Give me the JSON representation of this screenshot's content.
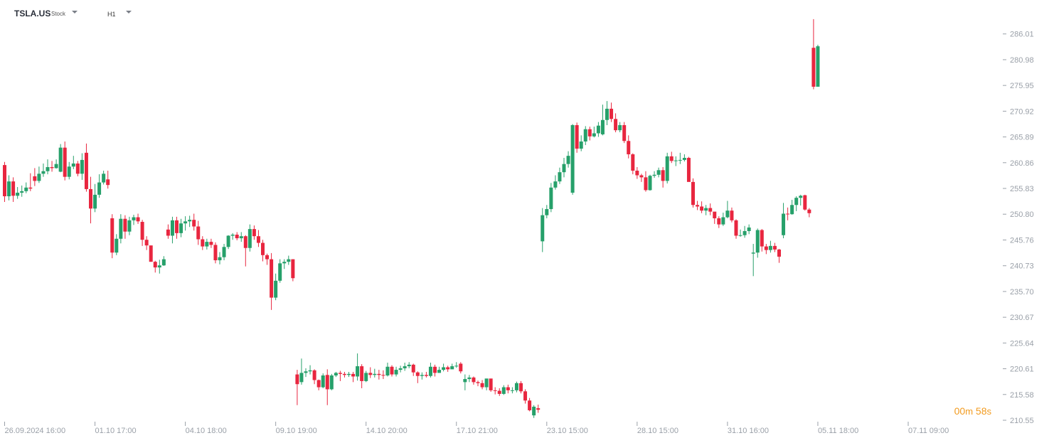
{
  "toolbar": {
    "symbol": "TSLA.US",
    "type": "Stock",
    "timeframe": "H1",
    "icons": [
      "symbol-dropdown-icon",
      "timeframe-dropdown-icon"
    ]
  },
  "timer": {
    "minutes": "00",
    "m": "m",
    "seconds": "58",
    "s": "s"
  },
  "colors": {
    "up": "#26a06a",
    "down": "#e8263f",
    "axis": "#9aa0a8",
    "timer": "#f29b1f"
  },
  "chart_data": {
    "type": "candlestick",
    "ylim": [
      210.55,
      290.0
    ],
    "yticks": [
      "286.01",
      "280.98",
      "275.95",
      "270.92",
      "265.89",
      "260.86",
      "255.83",
      "250.80",
      "245.76",
      "240.73",
      "235.70",
      "230.67",
      "225.64",
      "220.61",
      "215.58",
      "210.55"
    ],
    "xticks": [
      {
        "label": "26.09.2024 16:00",
        "index": 0
      },
      {
        "label": "01.10 17:00",
        "index": 21
      },
      {
        "label": "04.10 18:00",
        "index": 42
      },
      {
        "label": "09.10 19:00",
        "index": 63
      },
      {
        "label": "14.10 20:00",
        "index": 84
      },
      {
        "label": "17.10 21:00",
        "index": 105
      },
      {
        "label": "23.10 15:00",
        "index": 126
      },
      {
        "label": "28.10 15:00",
        "index": 147
      },
      {
        "label": "31.10 16:00",
        "index": 168
      },
      {
        "label": "05.11 18:00",
        "index": 189
      },
      {
        "label": "07.11 09:00",
        "index": 210
      }
    ],
    "candles": [
      [
        260.4,
        254.3,
        261.0,
        253.2
      ],
      [
        254.3,
        257.2,
        258.4,
        253.5
      ],
      [
        257.2,
        254.4,
        258.0,
        253.2
      ],
      [
        254.4,
        255.0,
        256.1,
        253.8
      ],
      [
        255.0,
        255.3,
        256.4,
        254.2
      ],
      [
        255.3,
        256.0,
        257.0,
        254.9
      ],
      [
        256.0,
        255.8,
        258.8,
        255.3
      ],
      [
        258.2,
        257.3,
        259.8,
        256.3
      ],
      [
        257.3,
        258.7,
        260.1,
        256.9
      ],
      [
        258.7,
        259.2,
        260.7,
        258.1
      ],
      [
        259.2,
        260.0,
        261.5,
        258.6
      ],
      [
        260.0,
        259.8,
        261.2,
        259.1
      ],
      [
        259.8,
        260.6,
        261.5,
        259.7
      ],
      [
        259.1,
        263.8,
        264.5,
        259.0
      ],
      [
        263.8,
        258.1,
        265.0,
        257.4
      ],
      [
        258.1,
        260.1,
        261.0,
        257.6
      ],
      [
        260.1,
        260.7,
        262.2,
        259.6
      ],
      [
        260.7,
        258.7,
        261.2,
        258.2
      ],
      [
        258.7,
        261.4,
        262.7,
        257.5
      ],
      [
        262.8,
        255.7,
        264.6,
        255.2
      ],
      [
        255.7,
        251.9,
        258.1,
        249.0
      ],
      [
        251.9,
        254.6,
        256.7,
        251.2
      ],
      [
        254.6,
        257.0,
        258.6,
        254.0
      ],
      [
        257.0,
        258.7,
        259.3,
        256.6
      ],
      [
        257.6,
        256.5,
        259.3,
        255.8
      ],
      [
        250.0,
        243.3,
        250.8,
        242.2
      ],
      [
        243.3,
        246.0,
        246.9,
        242.8
      ],
      [
        246.0,
        249.9,
        250.8,
        245.1
      ],
      [
        249.9,
        247.4,
        250.6,
        246.0
      ],
      [
        247.4,
        249.6,
        250.3,
        246.7
      ],
      [
        249.6,
        250.2,
        250.7,
        248.7
      ],
      [
        250.2,
        249.4,
        250.9,
        248.9
      ],
      [
        249.3,
        245.8,
        249.7,
        244.6
      ],
      [
        245.8,
        244.7,
        246.5,
        243.8
      ],
      [
        244.7,
        241.5,
        244.6,
        241.6
      ],
      [
        241.5,
        240.4,
        241.7,
        239.4
      ],
      [
        240.4,
        240.8,
        241.9,
        239.2
      ],
      [
        240.8,
        242.0,
        242.6,
        240.7
      ],
      [
        247.8,
        246.6,
        248.8,
        246.0
      ],
      [
        246.6,
        249.6,
        250.3,
        245.1
      ],
      [
        249.6,
        247.1,
        250.3,
        246.0
      ],
      [
        247.1,
        249.0,
        249.9,
        246.3
      ],
      [
        249.0,
        249.4,
        250.4,
        247.6
      ],
      [
        249.4,
        249.7,
        250.5,
        248.3
      ],
      [
        249.7,
        248.4,
        250.9,
        247.6
      ],
      [
        248.4,
        245.9,
        249.5,
        244.8
      ],
      [
        245.9,
        244.5,
        246.5,
        243.8
      ],
      [
        244.5,
        245.4,
        246.0,
        243.9
      ],
      [
        245.4,
        244.8,
        246.0,
        244.2
      ],
      [
        244.8,
        241.8,
        245.3,
        241.2
      ],
      [
        241.8,
        242.4,
        243.4,
        241.0
      ],
      [
        242.4,
        244.4,
        245.0,
        241.8
      ],
      [
        244.4,
        246.6,
        246.7,
        244.0
      ],
      [
        246.6,
        246.8,
        247.1,
        245.8
      ],
      [
        246.8,
        246.1,
        247.3,
        245.7
      ],
      [
        246.1,
        246.5,
        247.3,
        245.4
      ],
      [
        246.5,
        244.2,
        246.7,
        240.6
      ],
      [
        244.2,
        247.9,
        248.8,
        243.5
      ],
      [
        247.9,
        246.5,
        248.6,
        245.8
      ],
      [
        246.5,
        245.2,
        247.7,
        244.4
      ],
      [
        245.2,
        242.8,
        245.8,
        241.6
      ],
      [
        242.8,
        242.0,
        243.1,
        240.9
      ],
      [
        242.0,
        234.5,
        243.2,
        232.1
      ],
      [
        234.5,
        237.8,
        239.2,
        234.0
      ],
      [
        237.8,
        241.2,
        242.0,
        237.4
      ],
      [
        241.2,
        241.5,
        242.0,
        240.1
      ],
      [
        241.5,
        242.0,
        242.7,
        240.9
      ],
      [
        242.0,
        238.3,
        242.0,
        237.7
      ],
      [
        219.5,
        217.6,
        220.4,
        213.5
      ],
      [
        218.0,
        219.8,
        222.6,
        217.5
      ],
      [
        219.8,
        220.1,
        220.7,
        219.0
      ],
      [
        220.1,
        220.3,
        221.3,
        219.5
      ],
      [
        220.3,
        218.4,
        220.5,
        217.6
      ],
      [
        218.4,
        217.0,
        218.5,
        216.4
      ],
      [
        217.0,
        219.3,
        219.7,
        216.8
      ],
      [
        219.4,
        216.6,
        220.5,
        213.5
      ],
      [
        216.6,
        219.3,
        219.6,
        216.4
      ],
      [
        219.3,
        219.8,
        220.0,
        219.0
      ],
      [
        219.8,
        219.6,
        220.2,
        218.2
      ],
      [
        219.6,
        219.4,
        220.0,
        218.9
      ],
      [
        219.4,
        219.6,
        220.0,
        219.0
      ],
      [
        219.6,
        219.1,
        220.0,
        218.0
      ],
      [
        219.1,
        221.1,
        223.6,
        218.3
      ],
      [
        221.1,
        218.2,
        221.5,
        216.8
      ],
      [
        218.2,
        219.8,
        220.2,
        218.0
      ],
      [
        219.8,
        219.4,
        220.9,
        218.8
      ],
      [
        219.4,
        219.6,
        220.6,
        218.9
      ],
      [
        219.6,
        219.4,
        220.4,
        218.5
      ],
      [
        219.4,
        219.3,
        220.3,
        218.6
      ],
      [
        219.3,
        221.0,
        221.8,
        219.1
      ],
      [
        221.0,
        219.5,
        221.3,
        219.1
      ],
      [
        219.5,
        220.4,
        221.0,
        219.1
      ],
      [
        220.4,
        220.7,
        221.2,
        219.9
      ],
      [
        220.7,
        221.1,
        221.8,
        220.2
      ],
      [
        221.1,
        221.4,
        221.9,
        220.7
      ],
      [
        221.4,
        219.9,
        221.6,
        219.2
      ],
      [
        219.9,
        219.2,
        220.1,
        217.8
      ],
      [
        219.2,
        219.4,
        219.9,
        218.5
      ],
      [
        219.4,
        219.2,
        220.0,
        218.9
      ],
      [
        219.2,
        221.0,
        221.8,
        218.9
      ],
      [
        221.0,
        219.8,
        221.4,
        219.1
      ],
      [
        219.8,
        220.4,
        221.0,
        219.8
      ],
      [
        220.4,
        220.9,
        221.6,
        220.1
      ],
      [
        220.9,
        220.5,
        221.2,
        220.0
      ],
      [
        220.5,
        221.1,
        221.6,
        220.6
      ],
      [
        221.1,
        221.2,
        221.9,
        220.8
      ],
      [
        221.6,
        220.1,
        221.9,
        219.7
      ],
      [
        218.0,
        218.6,
        219.5,
        216.4
      ],
      [
        218.6,
        218.9,
        219.4,
        218.0
      ],
      [
        218.9,
        218.0,
        219.1,
        217.5
      ],
      [
        218.0,
        217.8,
        218.3,
        217.2
      ],
      [
        217.8,
        217.0,
        218.4,
        216.6
      ],
      [
        217.0,
        218.7,
        218.6,
        216.4
      ],
      [
        218.7,
        216.4,
        218.6,
        216.1
      ],
      [
        216.4,
        216.3,
        217.0,
        215.6
      ],
      [
        216.3,
        215.7,
        216.8,
        215.3
      ],
      [
        215.7,
        217.0,
        217.4,
        215.5
      ],
      [
        217.0,
        216.4,
        217.5,
        215.8
      ],
      [
        216.4,
        216.4,
        217.0,
        215.8
      ],
      [
        216.4,
        217.8,
        218.1,
        216.0
      ],
      [
        217.8,
        216.2,
        218.2,
        215.8
      ],
      [
        216.2,
        214.4,
        216.6,
        213.8
      ],
      [
        214.4,
        212.5,
        214.9,
        212.3
      ],
      [
        211.5,
        213.2,
        213.5,
        211.0
      ],
      [
        212.9,
        212.6,
        213.6,
        212.0
      ],
      [
        245.5,
        250.6,
        252.0,
        243.4
      ],
      [
        250.6,
        251.8,
        252.6,
        250.0
      ],
      [
        251.8,
        256.0,
        256.9,
        251.2
      ],
      [
        256.0,
        257.2,
        258.4,
        255.6
      ],
      [
        257.2,
        259.0,
        259.9,
        256.7
      ],
      [
        259.0,
        260.6,
        261.8,
        258.0
      ],
      [
        260.6,
        262.2,
        263.1,
        259.9
      ],
      [
        255.0,
        268.2,
        268.4,
        254.6
      ],
      [
        268.2,
        263.6,
        268.7,
        262.8
      ],
      [
        263.6,
        265.0,
        266.2,
        263.1
      ],
      [
        265.0,
        267.4,
        268.0,
        264.3
      ],
      [
        267.4,
        266.0,
        267.9,
        265.2
      ],
      [
        266.0,
        266.6,
        267.9,
        265.8
      ],
      [
        266.6,
        268.1,
        268.8,
        265.9
      ],
      [
        266.4,
        269.2,
        272.2,
        266.2
      ],
      [
        269.2,
        271.4,
        272.9,
        268.2
      ],
      [
        271.4,
        269.4,
        272.6,
        268.8
      ],
      [
        269.4,
        267.2,
        270.5,
        266.8
      ],
      [
        267.2,
        268.2,
        268.8,
        266.8
      ],
      [
        268.2,
        265.1,
        268.8,
        264.7
      ],
      [
        265.1,
        262.5,
        266.2,
        261.7
      ],
      [
        262.5,
        259.3,
        262.7,
        258.6
      ],
      [
        259.3,
        258.4,
        260.0,
        257.7
      ],
      [
        258.4,
        258.0,
        258.7,
        257.1
      ],
      [
        258.0,
        255.5,
        259.2,
        255.2
      ],
      [
        255.5,
        258.3,
        258.5,
        255.4
      ],
      [
        258.3,
        258.5,
        259.2,
        257.9
      ],
      [
        258.5,
        259.4,
        259.9,
        258.0
      ],
      [
        259.4,
        257.3,
        260.0,
        256.0
      ],
      [
        257.3,
        262.1,
        262.8,
        256.8
      ],
      [
        262.1,
        261.2,
        263.0,
        260.8
      ],
      [
        261.2,
        261.3,
        262.1,
        260.2
      ],
      [
        261.3,
        261.4,
        262.8,
        260.6
      ],
      [
        261.4,
        261.8,
        262.5,
        261.1
      ],
      [
        261.8,
        257.1,
        262.0,
        257.5
      ],
      [
        257.1,
        252.6,
        257.8,
        252.1
      ],
      [
        252.6,
        252.3,
        253.4,
        251.6
      ],
      [
        252.3,
        251.5,
        253.3,
        251.0
      ],
      [
        251.5,
        252.0,
        252.6,
        250.6
      ],
      [
        252.0,
        251.3,
        252.9,
        250.6
      ],
      [
        251.3,
        250.0,
        251.2,
        248.9
      ],
      [
        250.0,
        248.8,
        250.4,
        248.1
      ],
      [
        248.8,
        250.2,
        251.1,
        248.5
      ],
      [
        250.2,
        251.5,
        253.4,
        250.0
      ],
      [
        251.5,
        249.6,
        252.1,
        249.2
      ],
      [
        249.6,
        246.6,
        249.8,
        246.0
      ],
      [
        246.6,
        246.7,
        247.8,
        246.4
      ],
      [
        246.7,
        247.5,
        248.5,
        246.2
      ],
      [
        247.5,
        248.2,
        248.8,
        246.9
      ],
      [
        243.1,
        243.3,
        245.0,
        238.7
      ],
      [
        243.3,
        247.7,
        248.0,
        242.3
      ],
      [
        247.7,
        244.5,
        247.9,
        243.5
      ],
      [
        244.5,
        243.8,
        245.0,
        243.0
      ],
      [
        243.8,
        244.6,
        245.6,
        243.3
      ],
      [
        244.6,
        243.9,
        245.2,
        243.4
      ],
      [
        243.9,
        242.5,
        244.0,
        241.3
      ],
      [
        246.7,
        250.9,
        253.0,
        246.1
      ],
      [
        250.9,
        250.8,
        252.1,
        249.6
      ],
      [
        250.8,
        252.6,
        253.6,
        250.7
      ],
      [
        252.6,
        254.0,
        254.3,
        251.4
      ],
      [
        254.0,
        254.4,
        254.6,
        252.5
      ],
      [
        254.5,
        251.7,
        254.6,
        251.5
      ],
      [
        251.7,
        251.0,
        252.0,
        250.2
      ],
      [
        283.3,
        275.7,
        288.9,
        275.2
      ],
      [
        275.7,
        283.6,
        283.9,
        275.8
      ]
    ]
  }
}
